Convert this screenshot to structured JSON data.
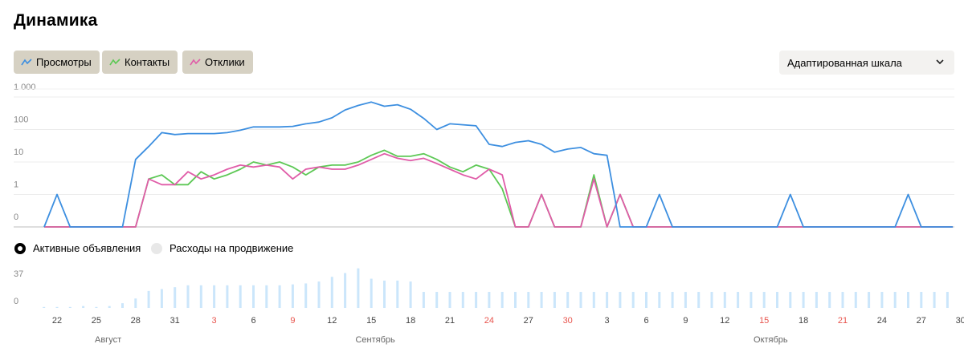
{
  "header": {
    "title": "Динамика"
  },
  "legend": {
    "views_label": "Просмотры",
    "contacts_label": "Контакты",
    "responses_label": "Отклики"
  },
  "scale_select": {
    "value": "Адаптированная шкала"
  },
  "metric_toggle": {
    "active_label": "Активные объявления",
    "spend_label": "Расходы на продвижение"
  },
  "colors": {
    "views": "#3d8fe0",
    "contacts": "#5dc855",
    "responses": "#e05ca8",
    "bars": "#cbe6fb",
    "weekend": "#e8554e"
  },
  "chart_data": [
    {
      "type": "line",
      "title": "",
      "y_scale": "log",
      "y_ticks": [
        "1 000",
        "100",
        "10",
        "1",
        "0"
      ],
      "x_start": "2024-08-20",
      "x_tick_labels": [
        {
          "day": 0,
          "label": "22"
        },
        {
          "day": 3,
          "label": "25"
        },
        {
          "day": 6,
          "label": "28"
        },
        {
          "day": 9,
          "label": "31"
        },
        {
          "day": 12,
          "label": "3",
          "weekend": true
        },
        {
          "day": 15,
          "label": "6"
        },
        {
          "day": 18,
          "label": "9",
          "weekend": true
        },
        {
          "day": 21,
          "label": "12"
        },
        {
          "day": 24,
          "label": "15"
        },
        {
          "day": 27,
          "label": "18"
        },
        {
          "day": 30,
          "label": "21"
        },
        {
          "day": 33,
          "label": "24",
          "weekend": true
        },
        {
          "day": 36,
          "label": "27"
        },
        {
          "day": 39,
          "label": "30",
          "weekend": true
        },
        {
          "day": 42,
          "label": "3"
        },
        {
          "day": 45,
          "label": "6"
        },
        {
          "day": 48,
          "label": "9"
        },
        {
          "day": 51,
          "label": "12"
        },
        {
          "day": 54,
          "label": "15",
          "weekend": true
        },
        {
          "day": 57,
          "label": "18"
        },
        {
          "day": 60,
          "label": "21",
          "weekend": true
        },
        {
          "day": 63,
          "label": "24"
        },
        {
          "day": 66,
          "label": "27"
        },
        {
          "day": 69,
          "label": "30"
        }
      ],
      "month_labels": [
        {
          "day": 3.9,
          "label": "Август"
        },
        {
          "day": 24.3,
          "label": "Сентябрь"
        },
        {
          "day": 54.5,
          "label": "Октябрь"
        }
      ],
      "series": [
        {
          "name": "Просмотры",
          "points": [
            [
              -1,
              0
            ],
            [
              0,
              1
            ],
            [
              1,
              0
            ],
            [
              5,
              0
            ],
            [
              6,
              12
            ],
            [
              7,
              30
            ],
            [
              8,
              80
            ],
            [
              9,
              70
            ],
            [
              10,
              75
            ],
            [
              11,
              75
            ],
            [
              12,
              75
            ],
            [
              13,
              80
            ],
            [
              14,
              95
            ],
            [
              15,
              120
            ],
            [
              16,
              120
            ],
            [
              17,
              120
            ],
            [
              18,
              125
            ],
            [
              19,
              150
            ],
            [
              20,
              170
            ],
            [
              21,
              230
            ],
            [
              22,
              400
            ],
            [
              23,
              550
            ],
            [
              24,
              700
            ],
            [
              25,
              520
            ],
            [
              26,
              580
            ],
            [
              27,
              420
            ],
            [
              28,
              220
            ],
            [
              29,
              100
            ],
            [
              30,
              150
            ],
            [
              31,
              140
            ],
            [
              32,
              130
            ],
            [
              33,
              35
            ],
            [
              34,
              30
            ],
            [
              35,
              40
            ],
            [
              36,
              45
            ],
            [
              37,
              35
            ],
            [
              38,
              20
            ],
            [
              39,
              25
            ],
            [
              40,
              28
            ],
            [
              41,
              18
            ],
            [
              42,
              16
            ],
            [
              43,
              0
            ],
            [
              45,
              0
            ],
            [
              46,
              1
            ],
            [
              47,
              0
            ],
            [
              55,
              0
            ],
            [
              56,
              1
            ],
            [
              57,
              0
            ],
            [
              64,
              0
            ],
            [
              65,
              1
            ],
            [
              66,
              0
            ],
            [
              69,
              0
            ]
          ]
        },
        {
          "name": "Контакты",
          "points": [
            [
              -1,
              0
            ],
            [
              5,
              0
            ],
            [
              6,
              0
            ],
            [
              7,
              3
            ],
            [
              8,
              4
            ],
            [
              9,
              2
            ],
            [
              10,
              2
            ],
            [
              11,
              5
            ],
            [
              12,
              3
            ],
            [
              13,
              4
            ],
            [
              14,
              6
            ],
            [
              15,
              10
            ],
            [
              16,
              8
            ],
            [
              17,
              10
            ],
            [
              18,
              7
            ],
            [
              19,
              4
            ],
            [
              20,
              7
            ],
            [
              21,
              8
            ],
            [
              22,
              8
            ],
            [
              23,
              10
            ],
            [
              24,
              16
            ],
            [
              25,
              23
            ],
            [
              26,
              15
            ],
            [
              27,
              15
            ],
            [
              28,
              18
            ],
            [
              29,
              12
            ],
            [
              30,
              7
            ],
            [
              31,
              5
            ],
            [
              32,
              8
            ],
            [
              33,
              6
            ],
            [
              34,
              1.5
            ],
            [
              35,
              0
            ],
            [
              36,
              0
            ],
            [
              37,
              1
            ],
            [
              38,
              0
            ],
            [
              40,
              0
            ],
            [
              41,
              4
            ],
            [
              42,
              0
            ],
            [
              43,
              1
            ],
            [
              44,
              0
            ],
            [
              69,
              0
            ]
          ]
        },
        {
          "name": "Отклики",
          "points": [
            [
              -1,
              0
            ],
            [
              5,
              0
            ],
            [
              6,
              0
            ],
            [
              7,
              3
            ],
            [
              8,
              2
            ],
            [
              9,
              2
            ],
            [
              10,
              5
            ],
            [
              11,
              3
            ],
            [
              12,
              4
            ],
            [
              13,
              6
            ],
            [
              14,
              8
            ],
            [
              15,
              7
            ],
            [
              16,
              8
            ],
            [
              17,
              7
            ],
            [
              18,
              3
            ],
            [
              19,
              6
            ],
            [
              20,
              7
            ],
            [
              21,
              6
            ],
            [
              22,
              6
            ],
            [
              23,
              8
            ],
            [
              24,
              12
            ],
            [
              25,
              18
            ],
            [
              26,
              13
            ],
            [
              27,
              11
            ],
            [
              28,
              13
            ],
            [
              29,
              9
            ],
            [
              30,
              6
            ],
            [
              31,
              4
            ],
            [
              32,
              3
            ],
            [
              33,
              6
            ],
            [
              34,
              4
            ],
            [
              35,
              0
            ],
            [
              36,
              0
            ],
            [
              37,
              1
            ],
            [
              38,
              0
            ],
            [
              40,
              0
            ],
            [
              41,
              3
            ],
            [
              42,
              0
            ],
            [
              43,
              1
            ],
            [
              44,
              0
            ],
            [
              69,
              0
            ]
          ]
        }
      ]
    },
    {
      "type": "bar",
      "title": "Активные объявления",
      "y_ticks": [
        "37",
        "0"
      ],
      "ylim": [
        0,
        40
      ],
      "values": [
        1,
        1,
        1,
        2,
        1,
        2,
        5,
        10,
        18,
        20,
        22,
        24,
        24,
        24,
        24,
        24,
        24,
        24,
        24,
        25,
        26,
        28,
        33,
        37,
        42,
        31,
        29,
        29,
        28,
        17,
        17,
        17,
        17,
        17,
        17,
        17,
        17,
        17,
        17,
        17,
        17,
        17,
        17,
        17,
        17,
        17,
        17,
        17,
        17,
        17,
        17,
        17,
        17,
        17,
        17,
        17,
        17,
        17,
        17,
        17,
        17,
        17,
        17,
        17,
        17,
        17,
        17,
        17,
        17,
        17,
        17
      ]
    }
  ]
}
